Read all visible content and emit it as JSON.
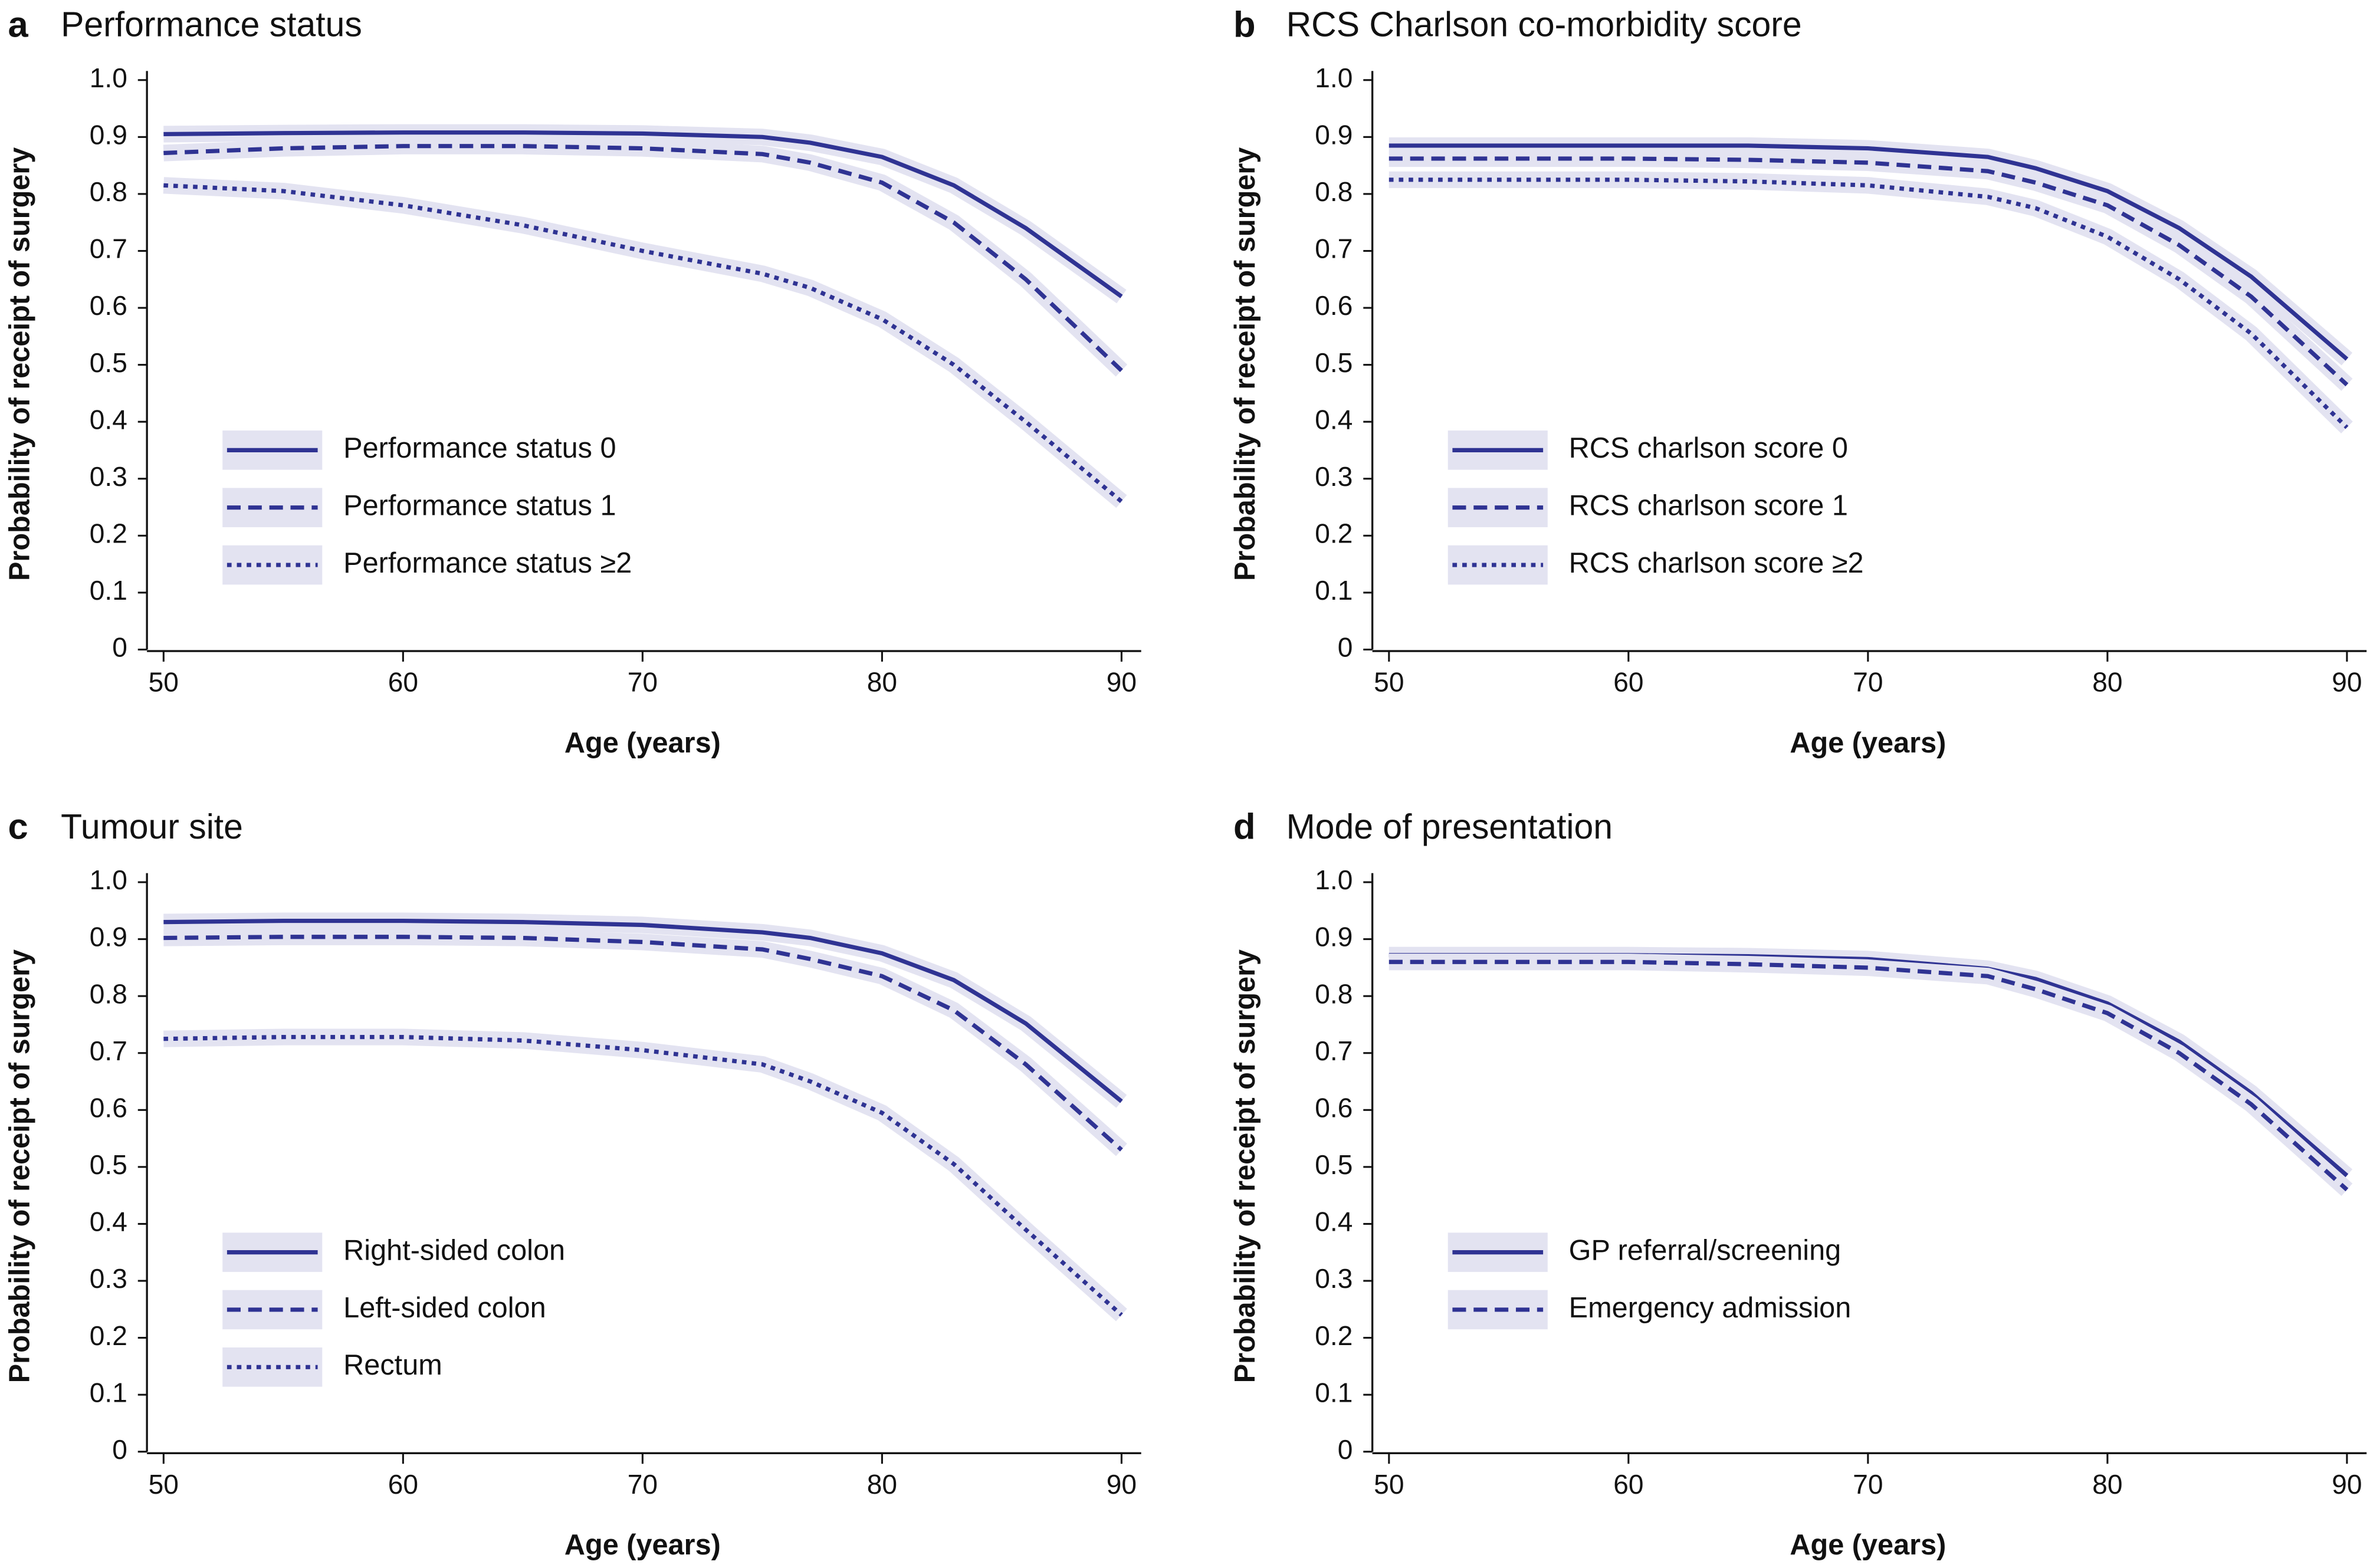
{
  "chart_data": [
    {
      "type": "line",
      "panel": "a",
      "title": "Performance status",
      "xlabel": "Age (years)",
      "ylabel": "Probability of receipt of surgery",
      "x": [
        50,
        55,
        60,
        65,
        70,
        75,
        77,
        80,
        83,
        86,
        90
      ],
      "xlim": [
        50,
        90
      ],
      "xticks": [
        50,
        60,
        70,
        80,
        90
      ],
      "ylim": [
        0,
        1
      ],
      "yticks": [
        0,
        0.1,
        0.2,
        0.3,
        0.4,
        0.5,
        0.6,
        0.7,
        0.8,
        0.9,
        {
          "value": 1,
          "label": "1.0"
        }
      ],
      "series": [
        {
          "name": "Performance status 0",
          "color": "#2f3393",
          "dash": "solid",
          "values": [
            0.905,
            0.907,
            0.908,
            0.908,
            0.906,
            0.9,
            0.89,
            0.865,
            0.815,
            0.74,
            0.62
          ]
        },
        {
          "name": "Performance status 1",
          "color": "#2f3393",
          "dash": "dashed",
          "values": [
            0.872,
            0.88,
            0.884,
            0.884,
            0.88,
            0.87,
            0.855,
            0.82,
            0.75,
            0.65,
            0.49
          ]
        },
        {
          "name": "Performance status ≥2",
          "color": "#2f3393",
          "dash": "dotted",
          "values": [
            0.815,
            0.805,
            0.78,
            0.745,
            0.7,
            0.66,
            0.635,
            0.58,
            0.5,
            0.4,
            0.26
          ]
        }
      ]
    },
    {
      "type": "line",
      "panel": "b",
      "title": "RCS Charlson co-morbidity score",
      "xlabel": "Age (years)",
      "ylabel": "Probability of receipt of surgery",
      "x": [
        50,
        55,
        60,
        65,
        70,
        75,
        77,
        80,
        83,
        86,
        90
      ],
      "xlim": [
        50,
        90
      ],
      "xticks": [
        50,
        60,
        70,
        80,
        90
      ],
      "ylim": [
        0,
        1
      ],
      "yticks": [
        0,
        0.1,
        0.2,
        0.3,
        0.4,
        0.5,
        0.6,
        0.7,
        0.8,
        0.9,
        {
          "value": 1,
          "label": "1.0"
        }
      ],
      "series": [
        {
          "name": "RCS charlson score 0",
          "color": "#2f3393",
          "dash": "solid",
          "values": [
            0.885,
            0.885,
            0.885,
            0.885,
            0.88,
            0.865,
            0.845,
            0.805,
            0.74,
            0.655,
            0.51
          ]
        },
        {
          "name": "RCS charlson score 1",
          "color": "#2f3393",
          "dash": "dashed",
          "values": [
            0.862,
            0.862,
            0.862,
            0.86,
            0.855,
            0.84,
            0.82,
            0.78,
            0.71,
            0.62,
            0.465
          ]
        },
        {
          "name": "RCS charlson score ≥2",
          "color": "#2f3393",
          "dash": "dotted",
          "values": [
            0.825,
            0.825,
            0.825,
            0.822,
            0.815,
            0.795,
            0.775,
            0.725,
            0.65,
            0.555,
            0.39
          ]
        }
      ]
    },
    {
      "type": "line",
      "panel": "c",
      "title": "Tumour site",
      "xlabel": "Age (years)",
      "ylabel": "Probability of receipt of surgery",
      "x": [
        50,
        55,
        60,
        65,
        70,
        75,
        77,
        80,
        83,
        86,
        90
      ],
      "xlim": [
        50,
        90
      ],
      "xticks": [
        50,
        60,
        70,
        80,
        90
      ],
      "ylim": [
        0,
        1
      ],
      "yticks": [
        0,
        0.1,
        0.2,
        0.3,
        0.4,
        0.5,
        0.6,
        0.7,
        0.8,
        0.9,
        {
          "value": 1,
          "label": "1.0"
        }
      ],
      "series": [
        {
          "name": "Right-sided colon",
          "color": "#2f3393",
          "dash": "solid",
          "values": [
            0.93,
            0.932,
            0.932,
            0.93,
            0.925,
            0.912,
            0.902,
            0.875,
            0.828,
            0.752,
            0.615
          ]
        },
        {
          "name": "Left-sided colon",
          "color": "#2f3393",
          "dash": "dashed",
          "values": [
            0.902,
            0.904,
            0.904,
            0.902,
            0.895,
            0.882,
            0.865,
            0.835,
            0.775,
            0.68,
            0.53
          ]
        },
        {
          "name": "Rectum",
          "color": "#2f3393",
          "dash": "dotted",
          "values": [
            0.725,
            0.728,
            0.728,
            0.722,
            0.705,
            0.68,
            0.65,
            0.595,
            0.505,
            0.39,
            0.24
          ]
        }
      ]
    },
    {
      "type": "line",
      "panel": "d",
      "title": "Mode of presentation",
      "xlabel": "Age (years)",
      "ylabel": "Probability of receipt of surgery",
      "x": [
        50,
        55,
        60,
        65,
        70,
        75,
        77,
        80,
        83,
        86,
        90
      ],
      "xlim": [
        50,
        90
      ],
      "xticks": [
        50,
        60,
        70,
        80,
        90
      ],
      "ylim": [
        0,
        1
      ],
      "yticks": [
        0,
        0.1,
        0.2,
        0.3,
        0.4,
        0.5,
        0.6,
        0.7,
        0.8,
        0.9,
        {
          "value": 1,
          "label": "1.0"
        }
      ],
      "series": [
        {
          "name": "GP referral/screening",
          "color": "#2f3393",
          "dash": "solid",
          "values": [
            0.872,
            0.872,
            0.872,
            0.87,
            0.865,
            0.848,
            0.83,
            0.787,
            0.72,
            0.63,
            0.485
          ]
        },
        {
          "name": "Emergency admission",
          "color": "#2f3393",
          "dash": "dashed",
          "values": [
            0.86,
            0.86,
            0.86,
            0.856,
            0.85,
            0.835,
            0.812,
            0.77,
            0.7,
            0.61,
            0.46
          ]
        }
      ]
    }
  ]
}
